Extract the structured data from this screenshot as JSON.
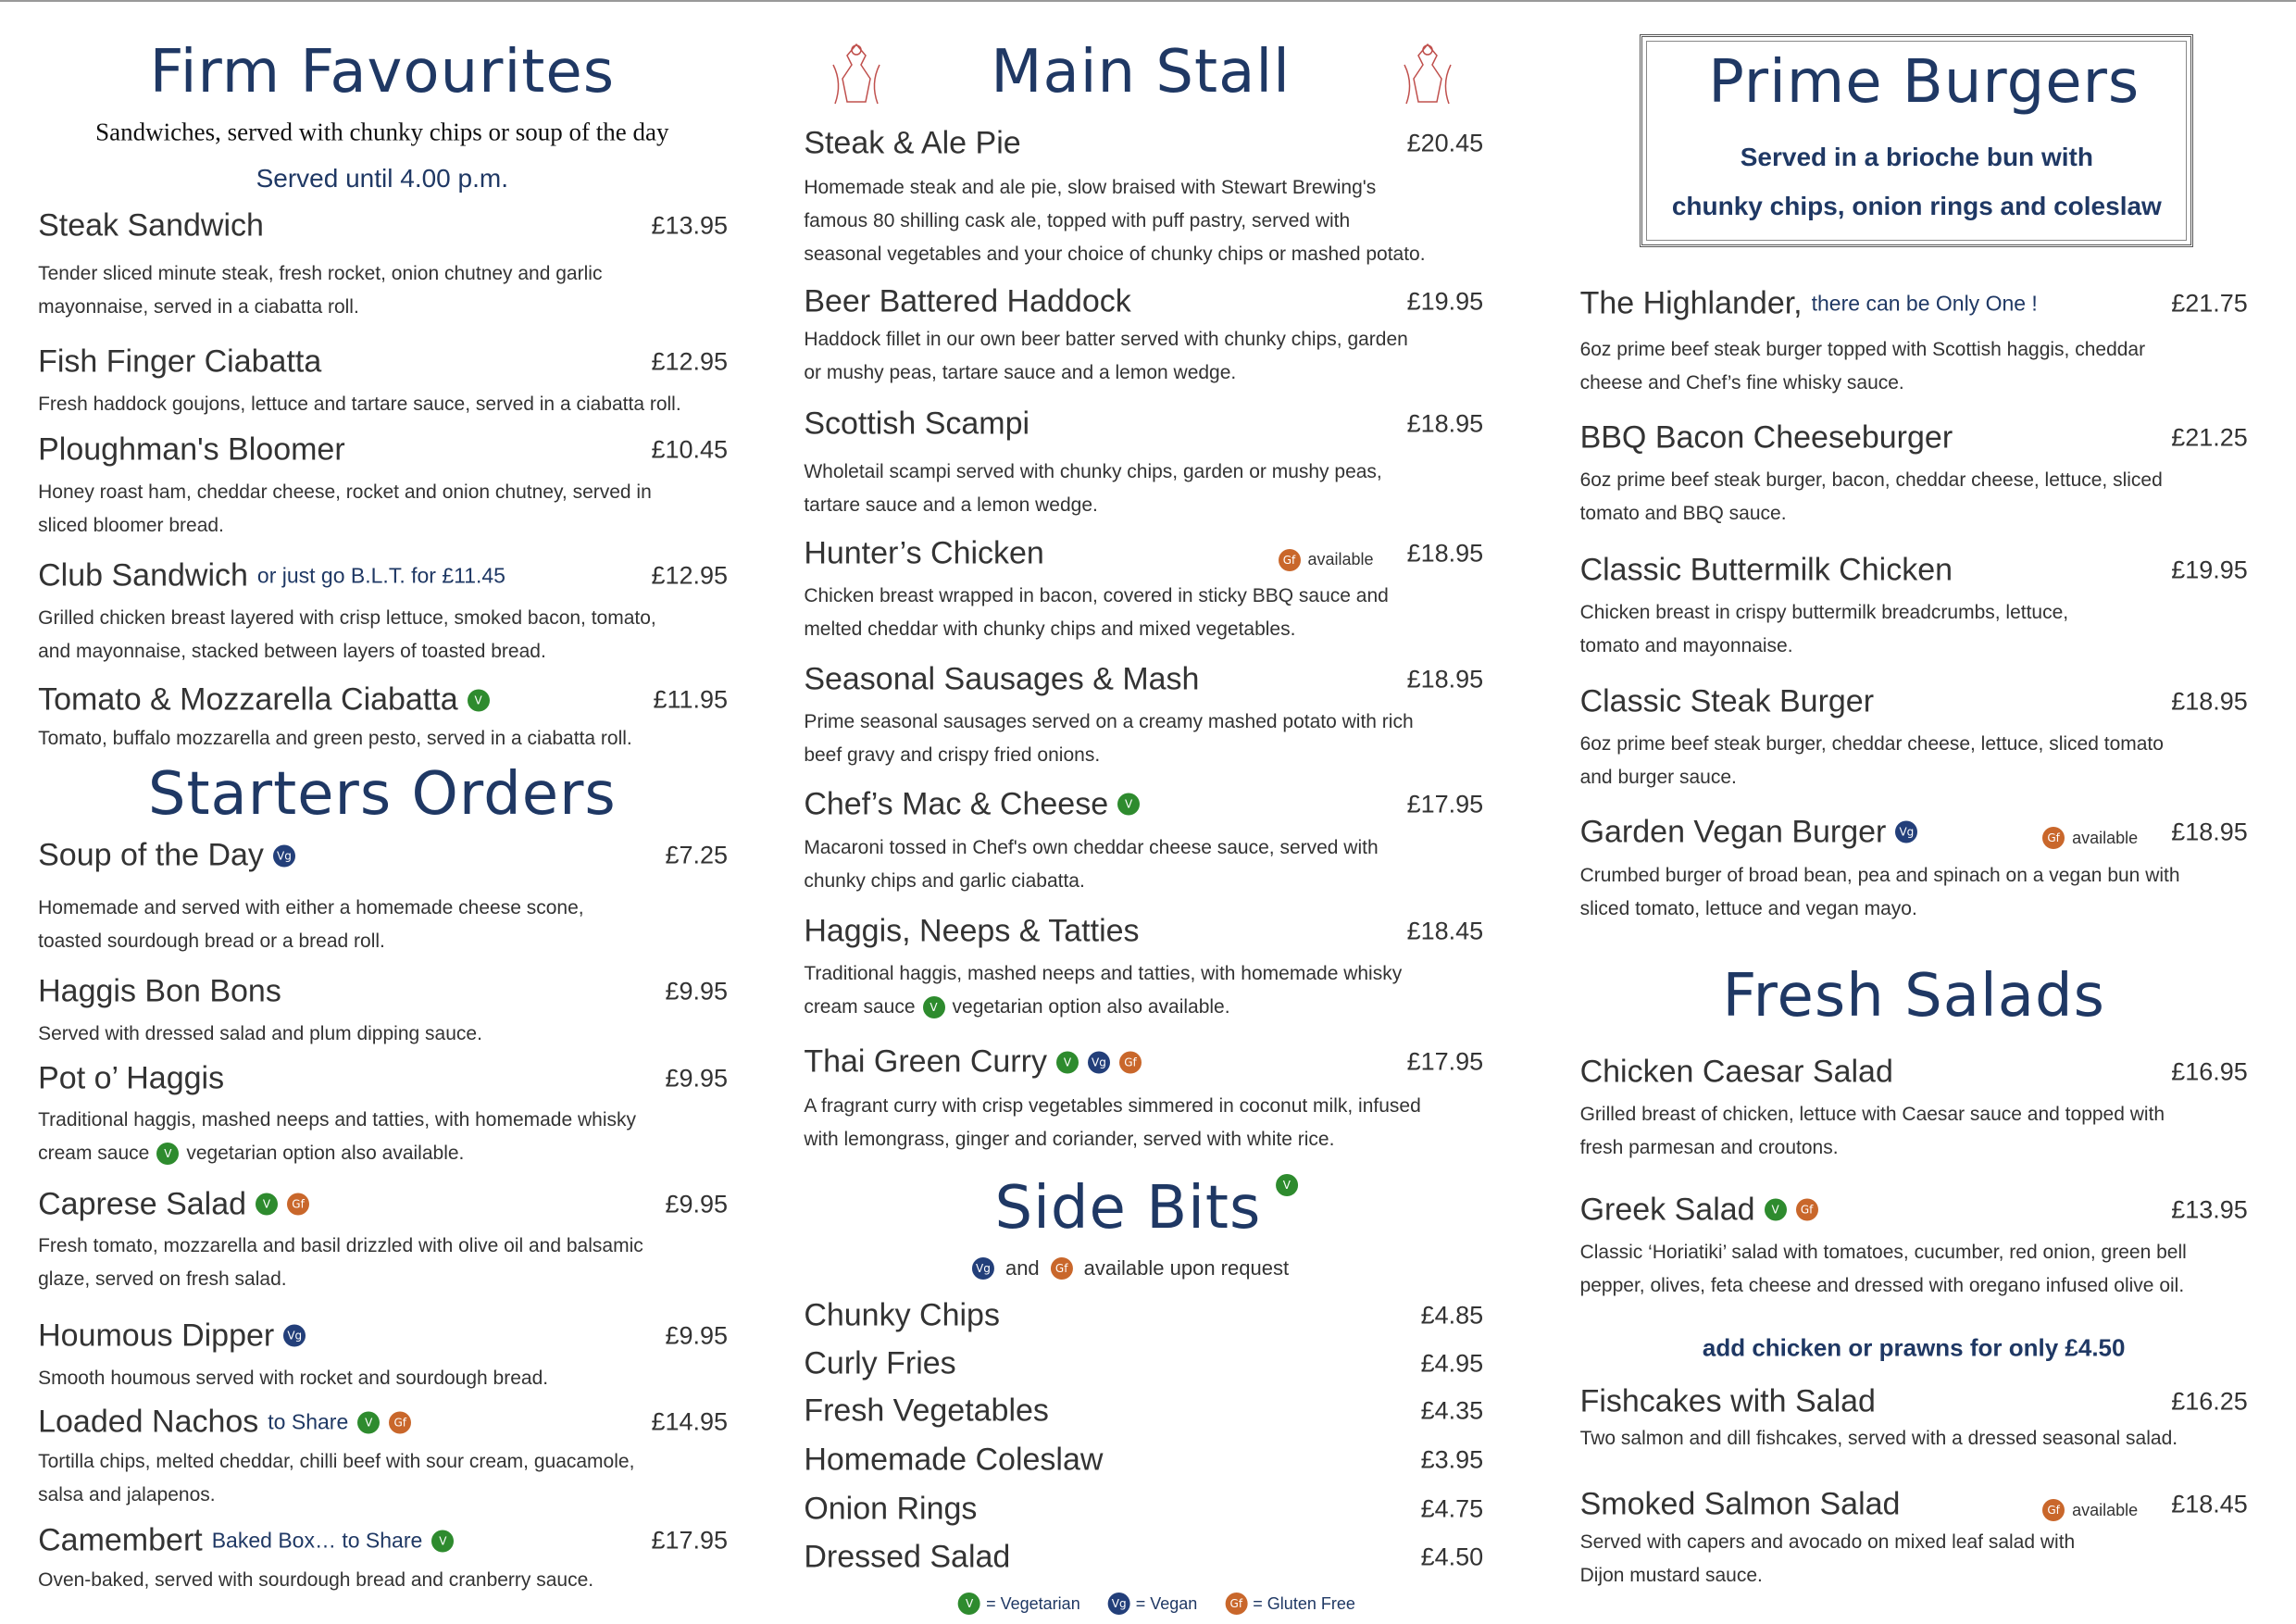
{
  "columns": [
    {
      "sections": [
        {
          "title": "Firm Favourites",
          "subtitles": [
            "Sandwiches, served with chunky chips or soup of the day",
            "Served until 4.00 p.m."
          ],
          "items": [
            {
              "name": "Steak Sandwich",
              "price": "£13.95",
              "description": [
                "Tender sliced minute steak, fresh rocket, onion chutney and garlic",
                "mayonnaise, served in a ciabatta roll."
              ]
            },
            {
              "name": "Fish Finger Ciabatta",
              "price": "£12.95",
              "description": [
                "Fresh haddock goujons, lettuce and tartare sauce, served in a ciabatta roll."
              ]
            },
            {
              "name": "Ploughman's Bloomer",
              "price": "£10.45",
              "description": [
                "Honey roast ham, cheddar cheese, rocket and onion chutney, served in",
                "sliced bloomer bread."
              ]
            },
            {
              "name": "Club Sandwich",
              "suffix": "or just go B.L.T. for £11.45",
              "price": "£12.95",
              "description": [
                "Grilled chicken breast layered with crisp lettuce, smoked bacon, tomato,",
                "and mayonnaise, stacked between layers of toasted bread."
              ]
            },
            {
              "name": "Tomato & Mozzarella Ciabatta",
              "badges": [
                "V"
              ],
              "price": "£11.95",
              "description": [
                "Tomato, buffalo mozzarella and green pesto, served in a ciabatta roll."
              ]
            }
          ]
        },
        {
          "title": "Starters Orders",
          "items": [
            {
              "name": "Soup of the Day",
              "badges": [
                "Vg"
              ],
              "price": "£7.25",
              "description": [
                "Homemade and served with either a homemade cheese scone,",
                "toasted sourdough bread or a bread roll."
              ]
            },
            {
              "name": "Haggis Bon Bons",
              "price": "£9.95",
              "description": [
                "Served with dressed salad and plum dipping sauce."
              ]
            },
            {
              "name": "Pot o’ Haggis",
              "price": "£9.95",
              "description": [
                "Traditional haggis, mashed neeps and tatties, with homemade whisky",
                [
                  "cream sauce",
                  {
                    "badge": "V"
                  },
                  "vegetarian option also available."
                ]
              ]
            },
            {
              "name": "Caprese Salad",
              "badges": [
                "V",
                "Gf"
              ],
              "price": "£9.95",
              "description": [
                "Fresh tomato, mozzarella and basil drizzled with olive oil and balsamic",
                "glaze, served on fresh salad."
              ]
            },
            {
              "name": "Houmous Dipper",
              "badges": [
                "Vg"
              ],
              "price": "£9.95",
              "description": [
                "Smooth houmous served with rocket and sourdough bread."
              ]
            },
            {
              "name": "Loaded Nachos",
              "suffix": "to Share",
              "badges": [
                "V",
                "Gf"
              ],
              "price": "£14.95",
              "description": [
                "Tortilla chips, melted cheddar, chilli beef with sour cream, guacamole,",
                "salsa and jalapenos."
              ]
            },
            {
              "name": "Camembert",
              "suffix": "Baked Box… to Share",
              "badges": [
                "V"
              ],
              "price": "£17.95",
              "description": [
                "Oven-baked, served with sourdough bread and cranberry sauce."
              ]
            }
          ]
        }
      ]
    },
    {
      "sections": [
        {
          "title": "Main Stall",
          "items": [
            {
              "name": "Steak & Ale Pie",
              "price": "£20.45",
              "description": [
                "Homemade steak and ale pie, slow braised with Stewart Brewing's",
                "famous 80 shilling cask ale, topped with puff pastry, served with",
                "seasonal vegetables and your choice of chunky chips or mashed potato."
              ]
            },
            {
              "name": "Beer Battered Haddock",
              "price": "£19.95",
              "description": [
                "Haddock fillet in our own beer batter served with chunky chips, garden",
                "or mushy peas, tartare sauce and a lemon wedge."
              ]
            },
            {
              "name": "Scottish Scampi",
              "price": "£18.95",
              "description": [
                "Wholetail scampi served with chunky chips, garden or mushy peas,",
                "tartare sauce and a lemon wedge."
              ]
            },
            {
              "name": "Hunter’s Chicken",
              "tag": {
                "badge": "Gf",
                "text": "available"
              },
              "price": "£18.95",
              "description": [
                "Chicken breast wrapped in bacon, covered in sticky BBQ sauce and",
                "melted cheddar with chunky chips and mixed vegetables."
              ]
            },
            {
              "name": "Seasonal Sausages & Mash",
              "price": "£18.95",
              "description": [
                "Prime seasonal sausages served on a creamy mashed potato with rich",
                "beef gravy and crispy fried onions."
              ]
            },
            {
              "name": "Chef’s Mac & Cheese",
              "badges": [
                "V"
              ],
              "price": "£17.95",
              "description": [
                "Macaroni tossed in Chef's own cheddar cheese sauce, served with",
                "chunky chips and garlic ciabatta."
              ]
            },
            {
              "name": "Haggis, Neeps & Tatties",
              "price": "£18.45",
              "description": [
                "Traditional haggis, mashed neeps and tatties, with homemade whisky",
                [
                  "cream sauce",
                  {
                    "badge": "V"
                  },
                  "vegetarian option also available."
                ]
              ]
            },
            {
              "name": "Thai Green Curry",
              "badges": [
                "V",
                "Vg",
                "Gf"
              ],
              "price": "£17.95",
              "description": [
                "A fragrant curry with crisp vegetables simmered in coconut milk, infused",
                "with lemongrass, ginger and coriander, served with white rice."
              ]
            }
          ]
        },
        {
          "title": "Side Bits",
          "title_badges": [
            "V"
          ],
          "note": [
            {
              "badge": "Vg"
            },
            "and",
            {
              "badge": "Gf"
            },
            "available upon request"
          ],
          "items": [
            {
              "name": "Chunky Chips",
              "price": "£4.85"
            },
            {
              "name": "Curly Fries",
              "price": "£4.95"
            },
            {
              "name": "Fresh Vegetables",
              "price": "£4.35"
            },
            {
              "name": "Homemade Coleslaw",
              "price": "£3.95"
            },
            {
              "name": "Onion Rings",
              "price": "£4.75"
            },
            {
              "name": "Dressed Salad",
              "price": "£4.50"
            }
          ]
        }
      ],
      "key": [
        {
          "badge": "V",
          "text": "= Vegetarian"
        },
        {
          "badge": "Vg",
          "text": "= Vegan"
        },
        {
          "badge": "Gf",
          "text": "= Gluten Free"
        }
      ]
    },
    {
      "sections": [
        {
          "title": "Prime Burgers",
          "subtitles": [
            "Served in a brioche bun with",
            "chunky chips, onion rings and coleslaw"
          ],
          "items": [
            {
              "name": "The Highlander,",
              "suffix": "there can be Only One !",
              "price": "£21.75",
              "description": [
                "6oz prime beef steak burger topped with Scottish haggis, cheddar",
                "cheese and Chef’s fine whisky sauce."
              ]
            },
            {
              "name": "BBQ Bacon Cheeseburger",
              "price": "£21.25",
              "description": [
                "6oz prime beef steak burger, bacon, cheddar cheese, lettuce, sliced",
                "tomato and BBQ sauce."
              ]
            },
            {
              "name": "Classic Buttermilk Chicken",
              "price": "£19.95",
              "description": [
                "Chicken breast in crispy buttermilk breadcrumbs, lettuce,",
                "tomato and mayonnaise."
              ]
            },
            {
              "name": "Classic Steak Burger",
              "price": "£18.95",
              "description": [
                "6oz prime beef steak burger, cheddar cheese, lettuce, sliced tomato",
                "and burger sauce."
              ]
            },
            {
              "name": "Garden Vegan Burger",
              "badges": [
                "Vg"
              ],
              "tag": {
                "badge": "Gf",
                "text": "available"
              },
              "price": "£18.95",
              "description": [
                "Crumbed burger of broad bean, pea and spinach on a vegan bun with",
                "sliced tomato, lettuce and vegan mayo."
              ]
            }
          ]
        },
        {
          "title": "Fresh Salads",
          "note": [
            "add chicken or prawns for only £4.50"
          ],
          "items": [
            {
              "name": "Chicken Caesar Salad",
              "price": "£16.95",
              "description": [
                "Grilled breast of chicken, lettuce with Caesar sauce and topped with",
                "fresh parmesan and croutons."
              ]
            },
            {
              "name": "Greek Salad",
              "badges": [
                "V",
                "Gf"
              ],
              "price": "£13.95",
              "description": [
                "Classic ‘Horiatiki’ salad with tomatoes, cucumber, red onion, green bell",
                "pepper, olives, feta cheese and dressed with oregano infused olive oil."
              ]
            },
            {
              "name": "Fishcakes with Salad",
              "price": "£16.25",
              "description": [
                "Two salmon and dill fishcakes, served with a dressed seasonal salad."
              ]
            },
            {
              "name": "Smoked Salmon Salad",
              "tag": {
                "badge": "Gf",
                "text": "available"
              },
              "price": "£18.45",
              "description": [
                "Served with capers and avocado on mixed leaf salad with",
                "Dijon mustard sauce."
              ]
            }
          ]
        }
      ]
    }
  ]
}
